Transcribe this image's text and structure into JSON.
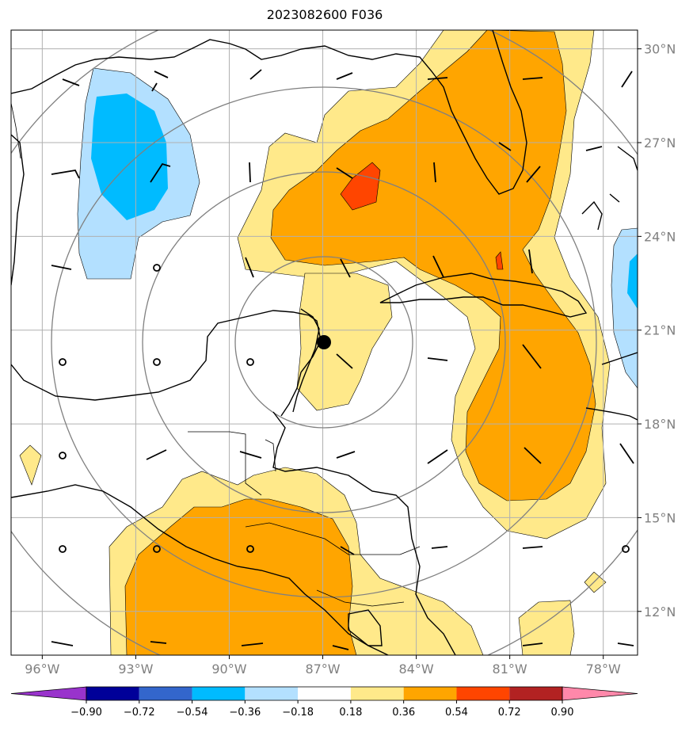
{
  "title": "2023082600 F036",
  "map": {
    "lon_range": [
      -97,
      -76.9
    ],
    "lat_range": [
      10.6,
      30.6
    ],
    "lat_ticks": [
      {
        "value": 30,
        "label": "30°N"
      },
      {
        "value": 27,
        "label": "27°N"
      },
      {
        "value": 24,
        "label": "24°N"
      },
      {
        "value": 21,
        "label": "21°N"
      },
      {
        "value": 18,
        "label": "18°N"
      },
      {
        "value": 15,
        "label": "15°N"
      },
      {
        "value": 12,
        "label": "12°N"
      }
    ],
    "lon_ticks": [
      {
        "value": -96,
        "label": "96°W"
      },
      {
        "value": -93,
        "label": "93°W"
      },
      {
        "value": -90,
        "label": "90°W"
      },
      {
        "value": -87,
        "label": "87°W"
      },
      {
        "value": -84,
        "label": "84°W"
      },
      {
        "value": -81,
        "label": "81°W"
      },
      {
        "value": -78,
        "label": "78°W"
      }
    ],
    "grid": true,
    "storm_center": {
      "lon": -86.65,
      "lat": 20.6
    },
    "range_rings_deg": [
      2.5,
      5.5,
      8.5
    ]
  },
  "colorbar": {
    "ticks": [
      "−0.90",
      "−0.72",
      "−0.54",
      "−0.36",
      "−0.18",
      "0.18",
      "0.36",
      "0.54",
      "0.72",
      "0.90"
    ],
    "colors": [
      "#9933cc",
      "#000099",
      "#3366cc",
      "#00bbff",
      "#b3e0ff",
      "#ffffff",
      "#ffe98a",
      "#ffa500",
      "#ff4500",
      "#b22222",
      "#ff88aa"
    ],
    "extend": "both"
  },
  "field_colors": {
    "light_blue": "#b3e0ff",
    "blue": "#00bbff",
    "yellow": "#ffe98a",
    "orange": "#ffa500",
    "red_orange": "#ff4500"
  }
}
